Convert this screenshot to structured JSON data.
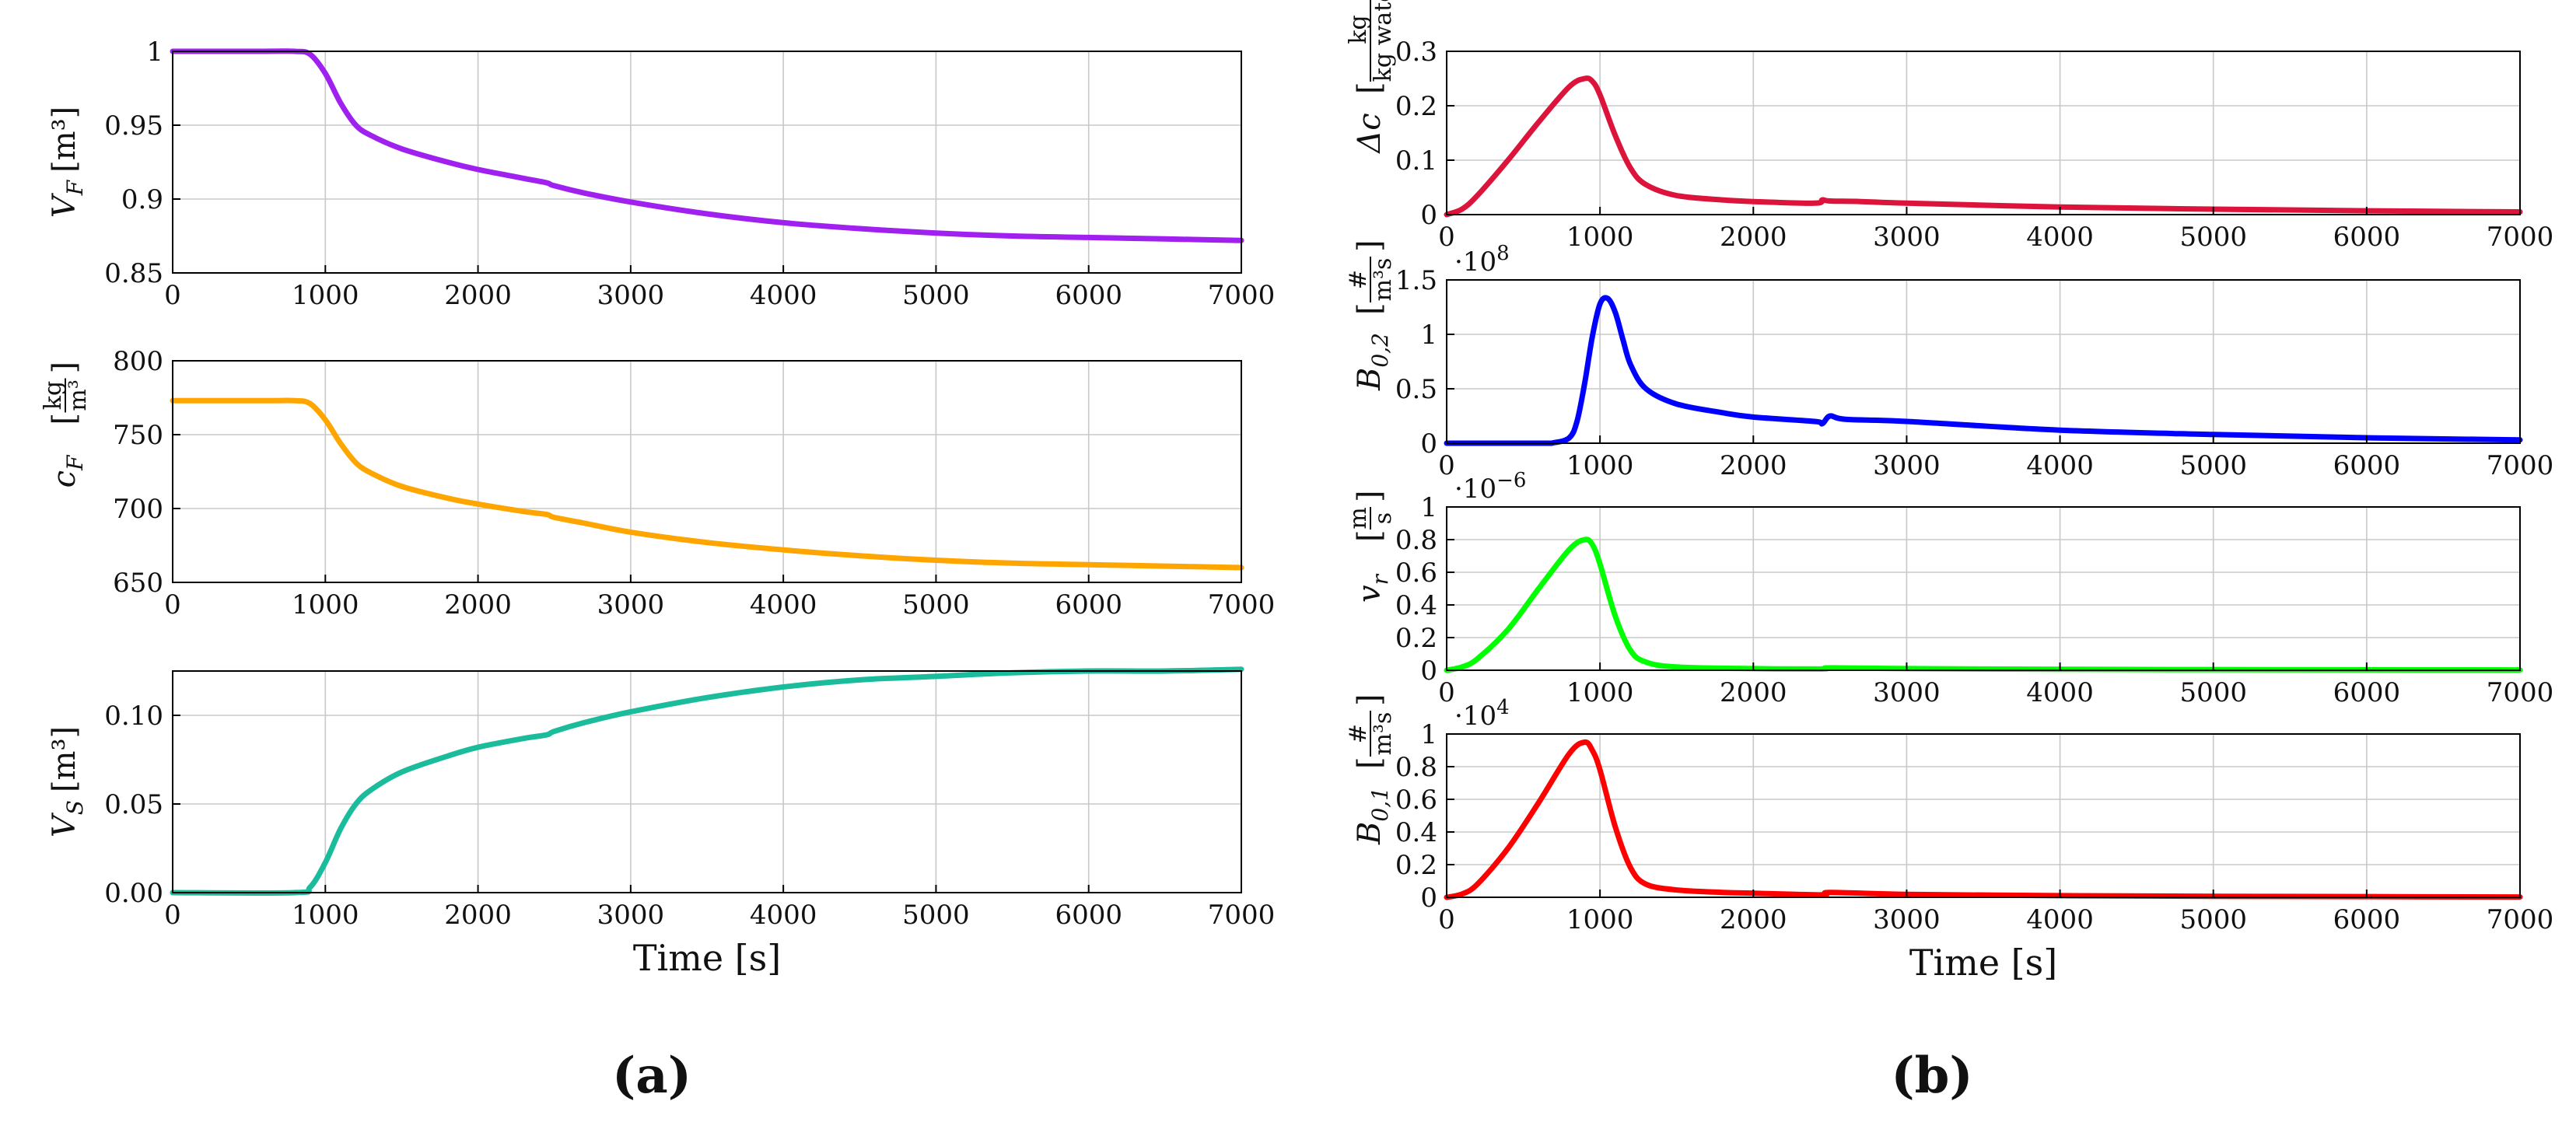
{
  "panels": [
    {
      "label": "(a)"
    },
    {
      "label": "(b)"
    }
  ],
  "colors": {
    "VF": "#a020f0",
    "cF": "#ffa500",
    "VS": "#1abc9c",
    "dc": "#dc143c",
    "B02": "#0000ff",
    "vr": "#00ff00",
    "B01": "#ff0000",
    "grid": "#c8c8c8",
    "axis": "#000000"
  },
  "chart_data": [
    {
      "id": "VF",
      "type": "line",
      "title": "",
      "xlabel": "",
      "ylabel": "V_F [m³]",
      "ylabel_main": "V",
      "ylabel_sub": "F",
      "ylabel_unit": "[m³]",
      "xlim": [
        0,
        7000
      ],
      "ylim": [
        0.85,
        1.0
      ],
      "xticks": [
        0,
        1000,
        2000,
        3000,
        4000,
        5000,
        6000,
        7000
      ],
      "yticks": [
        0.85,
        0.9,
        0.95,
        1.0
      ],
      "ytick_labels": [
        "0.85",
        "0.9",
        "0.95",
        "1"
      ],
      "x": [
        0,
        600,
        800,
        900,
        1000,
        1100,
        1200,
        1300,
        1500,
        1800,
        2000,
        2300,
        2450,
        2500,
        2700,
        3000,
        3500,
        4000,
        4500,
        5000,
        5500,
        6000,
        6500,
        7000
      ],
      "series": [
        {
          "name": "V_F",
          "values": [
            1.0,
            1.0,
            1.0,
            0.998,
            0.985,
            0.965,
            0.95,
            0.943,
            0.934,
            0.925,
            0.92,
            0.914,
            0.911,
            0.909,
            0.904,
            0.898,
            0.89,
            0.884,
            0.88,
            0.877,
            0.875,
            0.874,
            0.873,
            0.872
          ]
        }
      ]
    },
    {
      "id": "cF",
      "type": "line",
      "ylabel": "c_F [kg/m³]",
      "ylabel_main": "c",
      "ylabel_sub": "F",
      "ylabel_num": "kg",
      "ylabel_den": "m³",
      "xlim": [
        0,
        7000
      ],
      "ylim": [
        650,
        800
      ],
      "xticks": [
        0,
        1000,
        2000,
        3000,
        4000,
        5000,
        6000,
        7000
      ],
      "yticks": [
        650,
        700,
        750,
        800
      ],
      "ytick_labels": [
        "650",
        "700",
        "750",
        "800"
      ],
      "x": [
        0,
        600,
        800,
        900,
        1000,
        1100,
        1200,
        1300,
        1500,
        1800,
        2000,
        2300,
        2450,
        2500,
        2700,
        3000,
        3500,
        4000,
        4500,
        5000,
        5500,
        6000,
        6500,
        7000
      ],
      "series": [
        {
          "name": "c_F",
          "values": [
            773,
            773,
            773,
            771,
            760,
            744,
            731,
            724,
            715,
            707,
            703,
            698,
            696,
            694,
            690,
            684,
            677,
            672,
            668,
            665,
            663,
            662,
            661,
            660
          ]
        }
      ]
    },
    {
      "id": "VS",
      "type": "line",
      "xlabel": "Time [s]",
      "ylabel": "V_S [m³]",
      "ylabel_main": "V",
      "ylabel_sub": "S",
      "ylabel_unit": "[m³]",
      "xlim": [
        0,
        7000
      ],
      "ylim": [
        0,
        0.125
      ],
      "xticks": [
        0,
        1000,
        2000,
        3000,
        4000,
        5000,
        6000,
        7000
      ],
      "yticks": [
        0,
        0.05,
        0.1
      ],
      "ytick_labels": [
        "0.00",
        "0.05",
        "0.10"
      ],
      "x": [
        0,
        800,
        900,
        1000,
        1100,
        1200,
        1300,
        1500,
        1800,
        2000,
        2300,
        2450,
        2500,
        2700,
        3000,
        3500,
        4000,
        4500,
        5000,
        5500,
        6000,
        6500,
        7000
      ],
      "series": [
        {
          "name": "V_S",
          "values": [
            0,
            0,
            0.003,
            0.017,
            0.036,
            0.05,
            0.058,
            0.068,
            0.077,
            0.082,
            0.087,
            0.089,
            0.091,
            0.096,
            0.102,
            0.11,
            0.116,
            0.12,
            0.122,
            0.124,
            0.125,
            0.125,
            0.126
          ]
        }
      ]
    },
    {
      "id": "dc",
      "type": "line",
      "ylabel": "Δc [kg/kg water]",
      "ylabel_main": "Δc",
      "ylabel_num": "kg",
      "ylabel_den": "kg water",
      "xlim": [
        0,
        7000
      ],
      "ylim": [
        0,
        0.3
      ],
      "xticks": [
        0,
        1000,
        2000,
        3000,
        4000,
        5000,
        6000,
        7000
      ],
      "yticks": [
        0,
        0.1,
        0.2,
        0.3
      ],
      "ytick_labels": [
        "0",
        "0.1",
        "0.2",
        "0.3"
      ],
      "x": [
        0,
        100,
        200,
        400,
        600,
        800,
        900,
        950,
        1000,
        1100,
        1200,
        1300,
        1500,
        1800,
        2000,
        2400,
        2450,
        2500,
        2700,
        3000,
        4000,
        5000,
        6000,
        7000
      ],
      "series": [
        {
          "name": "Δc",
          "values": [
            0,
            0.01,
            0.035,
            0.1,
            0.17,
            0.235,
            0.25,
            0.245,
            0.22,
            0.145,
            0.085,
            0.055,
            0.035,
            0.027,
            0.024,
            0.021,
            0.027,
            0.025,
            0.024,
            0.021,
            0.014,
            0.01,
            0.007,
            0.005
          ]
        }
      ]
    },
    {
      "id": "B02",
      "type": "line",
      "ylabel": "B_0,2 [#/(m³s)]",
      "ylabel_main": "B",
      "ylabel_sub": "0,2",
      "ylabel_num": "#",
      "ylabel_den": "m³s",
      "multiplier_base": "·10",
      "multiplier_exp": "8",
      "xlim": [
        0,
        7000
      ],
      "ylim": [
        0,
        1.5
      ],
      "xticks": [
        0,
        1000,
        2000,
        3000,
        4000,
        5000,
        6000,
        7000
      ],
      "yticks": [
        0,
        0.5,
        1,
        1.5
      ],
      "ytick_labels": [
        "0",
        "0.5",
        "1",
        "1.5"
      ],
      "x": [
        0,
        600,
        700,
        800,
        850,
        900,
        950,
        1000,
        1050,
        1100,
        1150,
        1200,
        1300,
        1500,
        1800,
        2000,
        2400,
        2450,
        2500,
        2600,
        3000,
        4000,
        5000,
        6000,
        7000
      ],
      "series": [
        {
          "name": "B_0,2",
          "values": [
            0,
            0,
            0.005,
            0.05,
            0.2,
            0.55,
            0.98,
            1.28,
            1.33,
            1.2,
            0.95,
            0.72,
            0.5,
            0.36,
            0.28,
            0.24,
            0.2,
            0.18,
            0.25,
            0.22,
            0.2,
            0.12,
            0.08,
            0.05,
            0.03
          ]
        }
      ]
    },
    {
      "id": "vr",
      "type": "line",
      "ylabel": "v_r [m/s]",
      "ylabel_main": "v",
      "ylabel_sub": "r",
      "ylabel_num": "m",
      "ylabel_den": "s",
      "multiplier_base": "·10",
      "multiplier_exp": "−6",
      "xlim": [
        0,
        7000
      ],
      "ylim": [
        0,
        1
      ],
      "xticks": [
        0,
        1000,
        2000,
        3000,
        4000,
        5000,
        6000,
        7000
      ],
      "yticks": [
        0,
        0.2,
        0.4,
        0.6,
        0.8,
        1
      ],
      "ytick_labels": [
        "0",
        "0.2",
        "0.4",
        "0.6",
        "0.8",
        "1"
      ],
      "x": [
        0,
        100,
        200,
        400,
        600,
        800,
        900,
        950,
        1000,
        1100,
        1200,
        1300,
        1500,
        2000,
        2450,
        2500,
        3000,
        4000,
        5000,
        6000,
        7000
      ],
      "series": [
        {
          "name": "v_r",
          "values": [
            0,
            0.02,
            0.07,
            0.25,
            0.5,
            0.74,
            0.8,
            0.77,
            0.65,
            0.33,
            0.12,
            0.05,
            0.02,
            0.01,
            0.008,
            0.015,
            0.01,
            0.006,
            0.004,
            0.003,
            0.002
          ]
        }
      ]
    },
    {
      "id": "B01",
      "type": "line",
      "xlabel": "Time [s]",
      "ylabel": "B_0,1 [#/(m³s)]",
      "ylabel_main": "B",
      "ylabel_sub": "0,1",
      "ylabel_num": "#",
      "ylabel_den": "m³s",
      "multiplier_base": "·10",
      "multiplier_exp": "4",
      "xlim": [
        0,
        7000
      ],
      "ylim": [
        0,
        1
      ],
      "xticks": [
        0,
        1000,
        2000,
        3000,
        4000,
        5000,
        6000,
        7000
      ],
      "yticks": [
        0,
        0.2,
        0.4,
        0.6,
        0.8,
        1
      ],
      "ytick_labels": [
        "0",
        "0.2",
        "0.4",
        "0.6",
        "0.8",
        "1"
      ],
      "x": [
        0,
        100,
        200,
        400,
        600,
        800,
        900,
        950,
        1000,
        1100,
        1200,
        1300,
        1500,
        1800,
        2000,
        2450,
        2500,
        3000,
        4000,
        5000,
        6000,
        7000
      ],
      "series": [
        {
          "name": "B_0,1",
          "values": [
            0,
            0.02,
            0.08,
            0.3,
            0.58,
            0.88,
            0.95,
            0.9,
            0.78,
            0.43,
            0.18,
            0.08,
            0.045,
            0.03,
            0.025,
            0.015,
            0.03,
            0.018,
            0.01,
            0.006,
            0.004,
            0.002
          ]
        }
      ]
    }
  ]
}
